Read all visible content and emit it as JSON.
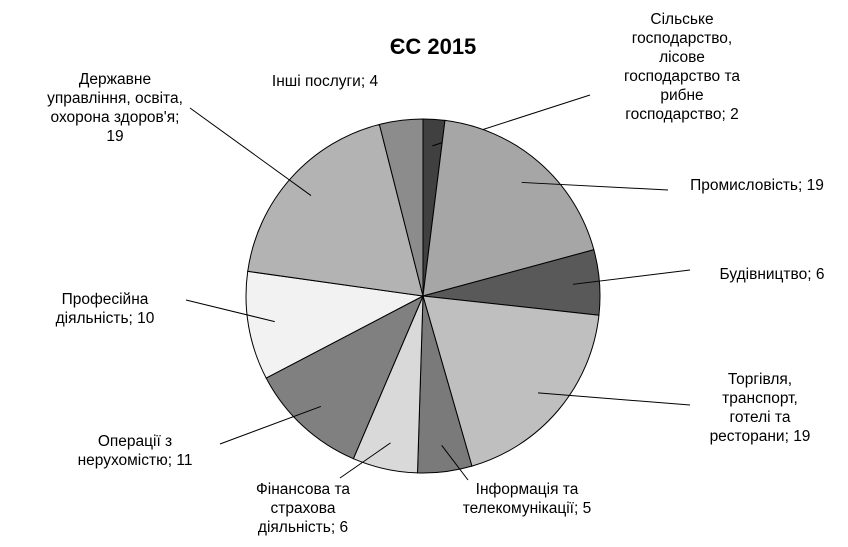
{
  "chart_data": {
    "type": "pie",
    "title": "ЄС 2015",
    "categories": [
      "Сільське господарство, лісове господарство та рибне господарство",
      "Промисловість",
      "Будівництво",
      "Торгівля, транспорт, готелі та ресторани",
      "Інформація та телекомунікації",
      "Фінансова та страхова діяльність",
      "Операції з нерухомістю",
      "Професійна діяльність",
      "Державне управління, освіта, охорона здоров'я",
      "Інші послуги"
    ],
    "values": [
      2,
      19,
      6,
      19,
      5,
      6,
      11,
      10,
      19,
      4
    ],
    "colors": [
      "#404040",
      "#a6a6a6",
      "#595959",
      "#bfbfbf",
      "#7a7a7a",
      "#d9d9d9",
      "#808080",
      "#f2f2f2",
      "#b3b3b3",
      "#8c8c8c"
    ],
    "label_separator": "; "
  }
}
